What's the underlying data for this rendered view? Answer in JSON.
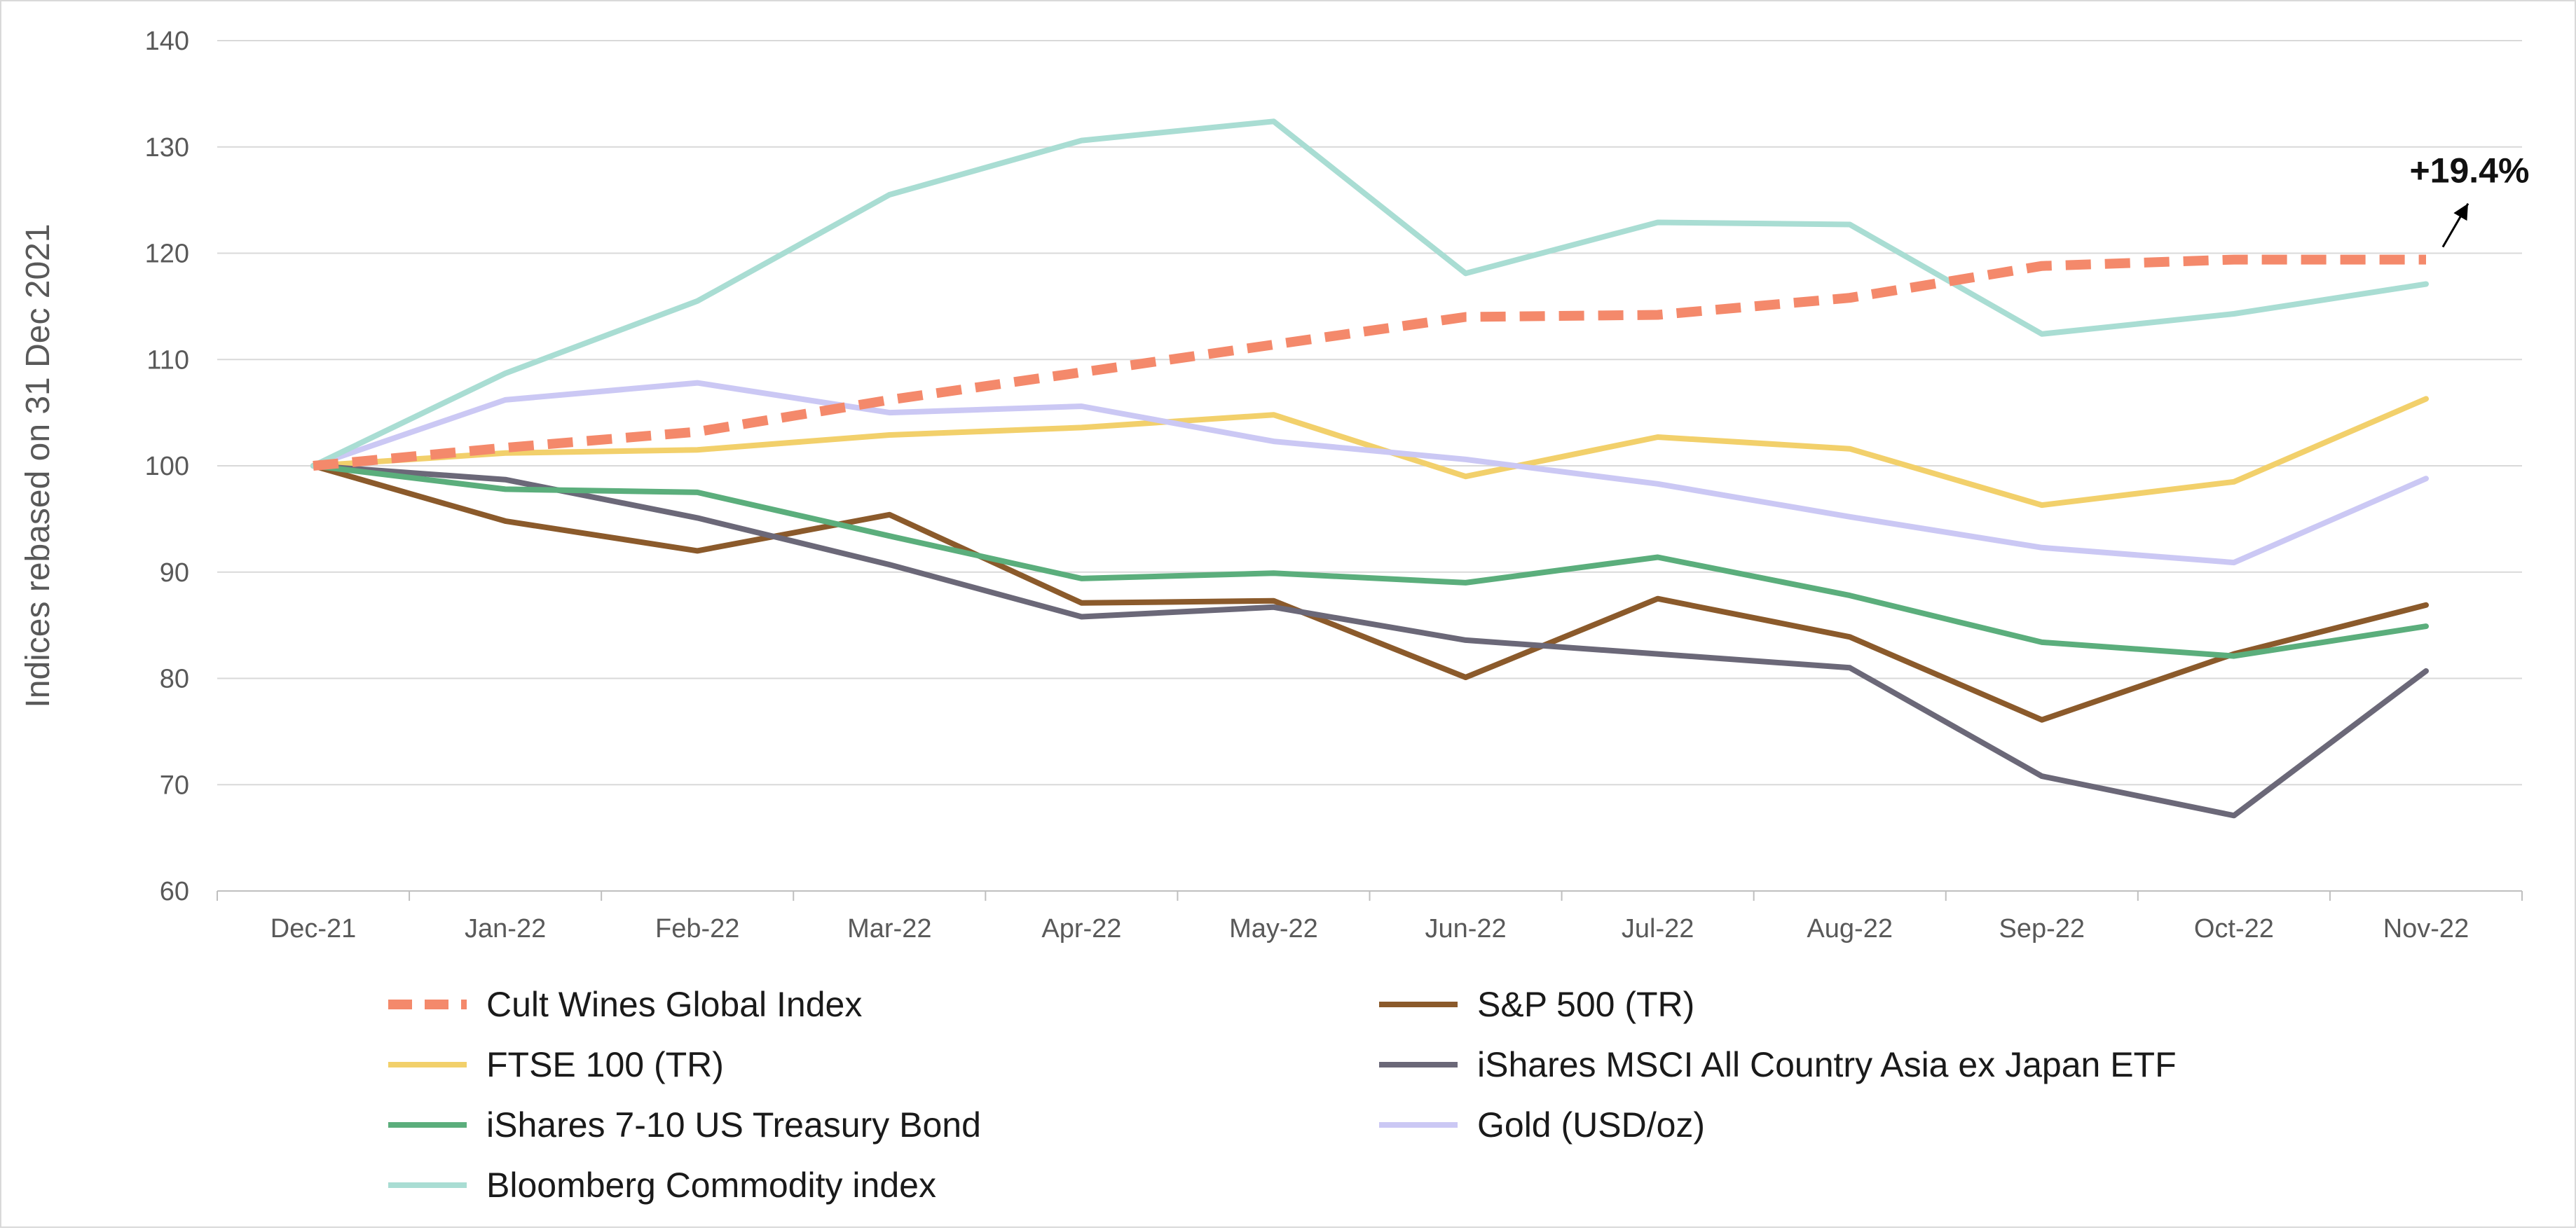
{
  "chart_data": {
    "type": "line",
    "title": "",
    "xlabel": "",
    "ylabel": "Indices rebased on 31 Dec 2021",
    "ylim": [
      60,
      140
    ],
    "yticks": [
      60,
      70,
      80,
      90,
      100,
      110,
      120,
      130,
      140
    ],
    "categories": [
      "Dec-21",
      "Jan-22",
      "Feb-22",
      "Mar-22",
      "Apr-22",
      "May-22",
      "Jun-22",
      "Jul-22",
      "Aug-22",
      "Sep-22",
      "Oct-22",
      "Nov-22"
    ],
    "grid": true,
    "legend_position": "bottom",
    "series": [
      {
        "name": "Cult Wines Global Index",
        "color": "#F4896B",
        "dashed": true,
        "values": [
          100,
          101.7,
          103.2,
          106.2,
          108.8,
          111.4,
          114,
          114.2,
          115.8,
          118.8,
          119.4,
          119.4
        ]
      },
      {
        "name": "S&P 500 (TR)",
        "color": "#8B5A2B",
        "dashed": false,
        "values": [
          100,
          94.8,
          92,
          95.4,
          87.1,
          87.3,
          80.1,
          87.5,
          83.9,
          76.1,
          82.3,
          86.9
        ]
      },
      {
        "name": "FTSE 100 (TR)",
        "color": "#F2D06B",
        "dashed": false,
        "values": [
          100,
          101.2,
          101.5,
          102.9,
          103.6,
          104.8,
          99,
          102.7,
          101.6,
          96.3,
          98.5,
          106.3
        ]
      },
      {
        "name": "iShares MSCI All Country Asia ex Japan ETF",
        "color": "#6B6878",
        "dashed": false,
        "values": [
          100,
          98.7,
          95.1,
          90.7,
          85.8,
          86.7,
          83.6,
          82.3,
          81,
          70.8,
          67.1,
          80.7
        ]
      },
      {
        "name": "iShares 7-10 US Treasury Bond",
        "color": "#5BAE7C",
        "dashed": false,
        "values": [
          100,
          97.8,
          97.5,
          93.4,
          89.4,
          89.9,
          89,
          91.4,
          87.8,
          83.4,
          82.1,
          84.9
        ]
      },
      {
        "name": "Gold (USD/oz)",
        "color": "#CBC8F4",
        "dashed": false,
        "values": [
          100,
          106.2,
          107.8,
          105,
          105.6,
          102.3,
          100.6,
          98.3,
          95.2,
          92.3,
          90.9,
          98.8
        ]
      },
      {
        "name": "Bloomberg Commodity index",
        "color": "#A9DDD3",
        "dashed": false,
        "values": [
          100,
          108.7,
          115.5,
          125.5,
          130.6,
          132.4,
          118.1,
          122.9,
          122.7,
          112.4,
          114.3,
          117.1
        ]
      }
    ],
    "annotations": [
      {
        "text": "+19.4%",
        "series": "Cult Wines Global Index",
        "category": "Nov-22"
      }
    ]
  }
}
